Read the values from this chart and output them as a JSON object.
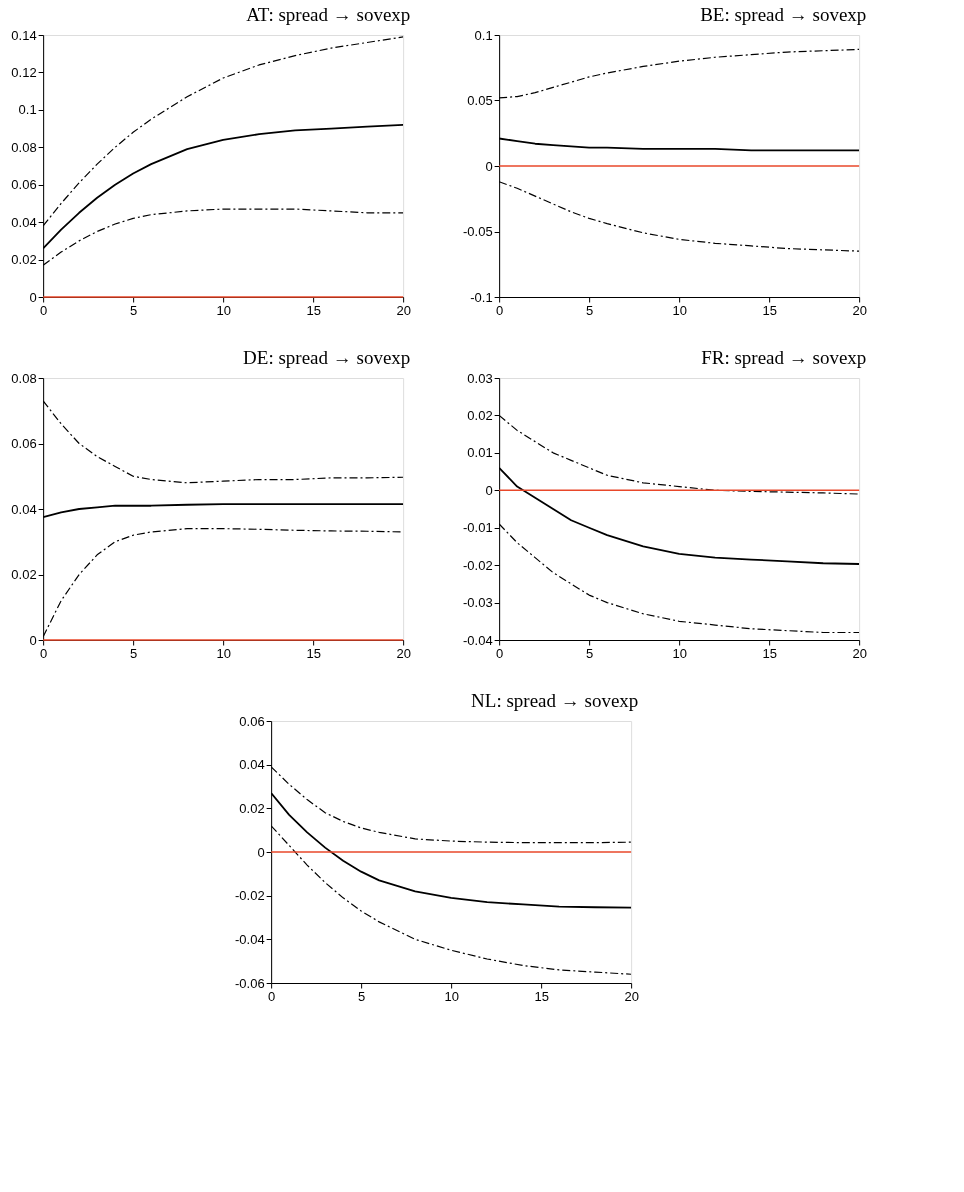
{
  "chart_data": [
    {
      "type": "line",
      "title": "AT: spread → sovexp",
      "x": [
        0,
        1,
        2,
        3,
        4,
        5,
        6,
        8,
        10,
        12,
        14,
        16,
        18,
        20
      ],
      "xlim": [
        0,
        20
      ],
      "xticks": [
        0,
        5,
        10,
        15,
        20
      ],
      "ylim": [
        0,
        0.14
      ],
      "yticks": [
        0,
        0.02,
        0.04,
        0.06,
        0.08,
        0.1,
        0.12,
        0.14
      ],
      "grid": false,
      "series": [
        {
          "color": "#000000",
          "line_style": "solid",
          "values": [
            0.026,
            0.036,
            0.045,
            0.053,
            0.06,
            0.066,
            0.071,
            0.079,
            0.084,
            0.087,
            0.089,
            0.09,
            0.091,
            0.092
          ]
        },
        {
          "color": "#000000",
          "line_style": "dashed",
          "values": [
            0.038,
            0.05,
            0.061,
            0.071,
            0.08,
            0.088,
            0.095,
            0.107,
            0.117,
            0.124,
            0.129,
            0.133,
            0.136,
            0.139
          ]
        },
        {
          "color": "#000000",
          "line_style": "dashed",
          "values": [
            0.017,
            0.024,
            0.03,
            0.035,
            0.039,
            0.042,
            0.044,
            0.046,
            0.047,
            0.047,
            0.047,
            0.046,
            0.045,
            0.045
          ]
        }
      ],
      "ref_lines": [
        {
          "axis": "y",
          "value": 0,
          "color": "#e8472a"
        }
      ]
    },
    {
      "type": "line",
      "title": "BE: spread → sovexp",
      "x": [
        0,
        1,
        2,
        3,
        4,
        5,
        6,
        8,
        10,
        12,
        14,
        16,
        18,
        20
      ],
      "xlim": [
        0,
        20
      ],
      "xticks": [
        0,
        5,
        10,
        15,
        20
      ],
      "ylim": [
        -0.1,
        0.1
      ],
      "yticks": [
        -0.1,
        -0.05,
        0,
        0.05,
        0.1
      ],
      "grid": false,
      "series": [
        {
          "color": "#000000",
          "line_style": "solid",
          "values": [
            0.021,
            0.019,
            0.017,
            0.016,
            0.015,
            0.014,
            0.014,
            0.013,
            0.013,
            0.013,
            0.012,
            0.012,
            0.012,
            0.012
          ]
        },
        {
          "color": "#000000",
          "line_style": "dashed",
          "values": [
            0.052,
            0.053,
            0.056,
            0.06,
            0.064,
            0.068,
            0.071,
            0.076,
            0.08,
            0.083,
            0.085,
            0.087,
            0.088,
            0.089
          ]
        },
        {
          "color": "#000000",
          "line_style": "dashed",
          "values": [
            -0.012,
            -0.017,
            -0.023,
            -0.029,
            -0.035,
            -0.04,
            -0.044,
            -0.051,
            -0.056,
            -0.059,
            -0.061,
            -0.063,
            -0.064,
            -0.065
          ]
        }
      ],
      "ref_lines": [
        {
          "axis": "y",
          "value": 0,
          "color": "#e8472a"
        }
      ]
    },
    {
      "type": "line",
      "title": "DE: spread → sovexp",
      "x": [
        0,
        1,
        2,
        3,
        4,
        5,
        6,
        8,
        10,
        12,
        14,
        16,
        18,
        20
      ],
      "xlim": [
        0,
        20
      ],
      "xticks": [
        0,
        5,
        10,
        15,
        20
      ],
      "ylim": [
        0,
        0.08
      ],
      "yticks": [
        0,
        0.02,
        0.04,
        0.06,
        0.08
      ],
      "grid": false,
      "series": [
        {
          "color": "#000000",
          "line_style": "solid",
          "values": [
            0.0375,
            0.039,
            0.04,
            0.0405,
            0.041,
            0.041,
            0.041,
            0.0413,
            0.0415,
            0.0415,
            0.0415,
            0.0415,
            0.0415,
            0.0415
          ]
        },
        {
          "color": "#000000",
          "line_style": "dashed",
          "values": [
            0.073,
            0.066,
            0.06,
            0.056,
            0.053,
            0.05,
            0.049,
            0.048,
            0.0485,
            0.049,
            0.049,
            0.0495,
            0.0495,
            0.0497
          ]
        },
        {
          "color": "#000000",
          "line_style": "dashed",
          "values": [
            0.001,
            0.012,
            0.02,
            0.026,
            0.03,
            0.032,
            0.033,
            0.034,
            0.034,
            0.0338,
            0.0335,
            0.0333,
            0.0332,
            0.033
          ]
        }
      ],
      "ref_lines": [
        {
          "axis": "y",
          "value": 0,
          "color": "#e8472a"
        }
      ]
    },
    {
      "type": "line",
      "title": "FR: spread → sovexp",
      "x": [
        0,
        1,
        2,
        3,
        4,
        5,
        6,
        8,
        10,
        12,
        14,
        16,
        18,
        20
      ],
      "xlim": [
        0,
        20
      ],
      "xticks": [
        0,
        5,
        10,
        15,
        20
      ],
      "ylim": [
        -0.04,
        0.03
      ],
      "yticks": [
        -0.04,
        -0.03,
        -0.02,
        -0.01,
        0,
        0.01,
        0.02,
        0.03
      ],
      "grid": false,
      "series": [
        {
          "color": "#000000",
          "line_style": "solid",
          "values": [
            0.006,
            0.001,
            -0.002,
            -0.005,
            -0.008,
            -0.01,
            -0.012,
            -0.015,
            -0.017,
            -0.018,
            -0.0185,
            -0.019,
            -0.0195,
            -0.0197
          ]
        },
        {
          "color": "#000000",
          "line_style": "dashed",
          "values": [
            0.02,
            0.016,
            0.013,
            0.01,
            0.008,
            0.006,
            0.004,
            0.002,
            0.001,
            0.0,
            -0.0003,
            -0.0005,
            -0.0007,
            -0.001
          ]
        },
        {
          "color": "#000000",
          "line_style": "dashed",
          "values": [
            -0.009,
            -0.014,
            -0.018,
            -0.022,
            -0.025,
            -0.028,
            -0.03,
            -0.033,
            -0.035,
            -0.036,
            -0.037,
            -0.0375,
            -0.038,
            -0.038
          ]
        }
      ],
      "ref_lines": [
        {
          "axis": "y",
          "value": 0,
          "color": "#e8472a"
        }
      ]
    },
    {
      "type": "line",
      "title": "NL: spread → sovexp",
      "x": [
        0,
        1,
        2,
        3,
        4,
        5,
        6,
        8,
        10,
        12,
        14,
        16,
        18,
        20
      ],
      "xlim": [
        0,
        20
      ],
      "xticks": [
        0,
        5,
        10,
        15,
        20
      ],
      "ylim": [
        -0.06,
        0.06
      ],
      "yticks": [
        -0.06,
        -0.04,
        -0.02,
        0,
        0.02,
        0.04,
        0.06
      ],
      "grid": false,
      "series": [
        {
          "color": "#000000",
          "line_style": "solid",
          "values": [
            0.027,
            0.017,
            0.009,
            0.002,
            -0.004,
            -0.009,
            -0.013,
            -0.018,
            -0.021,
            -0.023,
            -0.024,
            -0.025,
            -0.0253,
            -0.0255
          ]
        },
        {
          "color": "#000000",
          "line_style": "dashed",
          "values": [
            0.039,
            0.031,
            0.024,
            0.018,
            0.014,
            0.011,
            0.009,
            0.006,
            0.005,
            0.0045,
            0.0043,
            0.0043,
            0.0043,
            0.0045
          ]
        },
        {
          "color": "#000000",
          "line_style": "dashed",
          "values": [
            0.012,
            0.003,
            -0.006,
            -0.014,
            -0.021,
            -0.027,
            -0.032,
            -0.04,
            -0.045,
            -0.049,
            -0.052,
            -0.054,
            -0.055,
            -0.056
          ]
        }
      ],
      "ref_lines": [
        {
          "axis": "y",
          "value": 0,
          "color": "#e8472a"
        }
      ]
    }
  ]
}
